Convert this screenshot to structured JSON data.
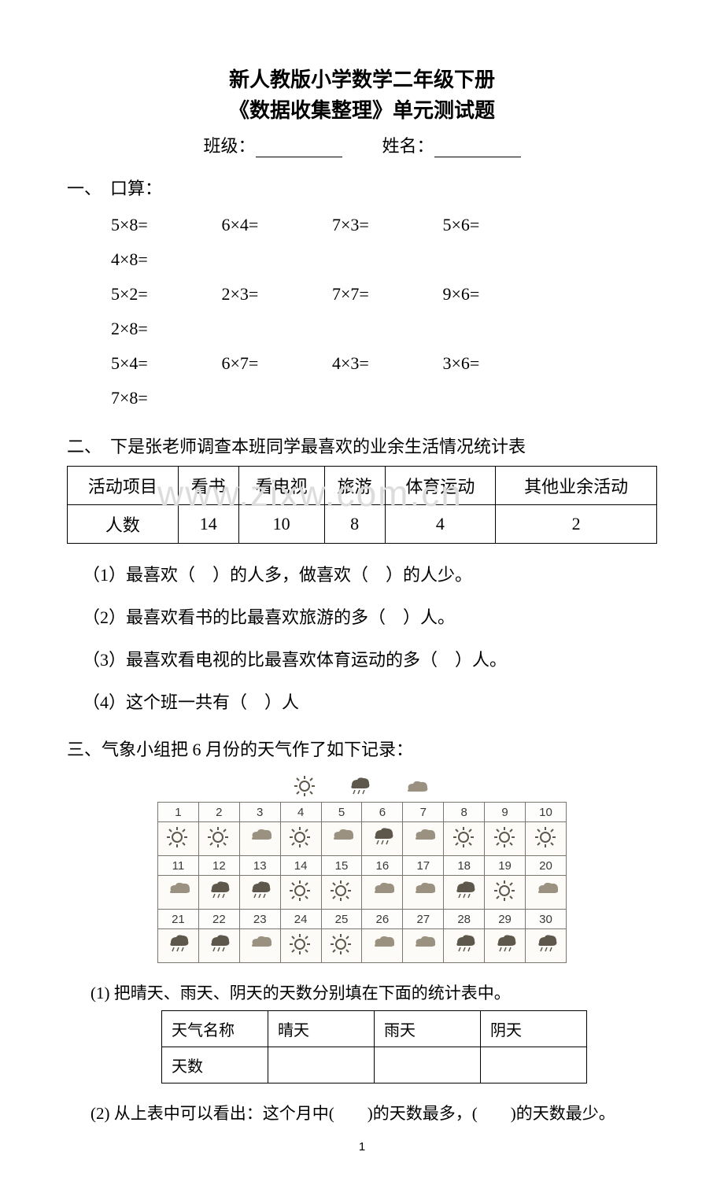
{
  "header": {
    "title_line1": "新人教版小学数学二年级下册",
    "title_line2": "《数据收集整理》单元测试题",
    "class_label": "班级：",
    "name_label": "姓名："
  },
  "section1": {
    "heading": "一、　口算：",
    "rows": [
      [
        "5×8=",
        "6×4=",
        "7×3=",
        "5×6=",
        "4×8="
      ],
      [
        "5×2=",
        "2×3=",
        "7×7=",
        "9×6=",
        "2×8="
      ],
      [
        "5×4=",
        "6×7=",
        "4×3=",
        "3×6=",
        "7×8="
      ]
    ]
  },
  "section2": {
    "heading": "二、　下是张老师调查本班同学最喜欢的业余生活情况统计表",
    "table": {
      "headers": [
        "活动项目",
        "看书",
        "看电视",
        "旅游",
        "体育运动",
        "其他业余活动"
      ],
      "row_label": "人数",
      "values": [
        "14",
        "10",
        "8",
        "4",
        "2"
      ]
    },
    "questions": [
      "（1）最喜欢（　）的人多，做喜欢（　）的人少。",
      "（2）最喜欢看书的比最喜欢旅游的多（　）人。",
      "（3）最喜欢看电视的比最喜欢体育运动的多（　）人。",
      "（4）这个班一共有（　）人"
    ]
  },
  "section3": {
    "heading": "三、气象小组把 6 月份的天气作了如下记录：",
    "legend": {
      "sun": "sun",
      "rain": "rain",
      "cloud": "cloud"
    },
    "calendar": {
      "days": [
        1,
        2,
        3,
        4,
        5,
        6,
        7,
        8,
        9,
        10,
        11,
        12,
        13,
        14,
        15,
        16,
        17,
        18,
        19,
        20,
        21,
        22,
        23,
        24,
        25,
        26,
        27,
        28,
        29,
        30
      ],
      "weather": [
        "sun",
        "sun",
        "cloud",
        "sun",
        "cloud",
        "rain",
        "cloud",
        "sun",
        "sun",
        "sun",
        "cloud",
        "rain",
        "rain",
        "sun",
        "sun",
        "cloud",
        "cloud",
        "rain",
        "sun",
        "cloud",
        "rain",
        "rain",
        "cloud",
        "sun",
        "sun",
        "cloud",
        "cloud",
        "rain",
        "rain",
        "rain"
      ]
    },
    "q1": "(1) 把晴天、雨天、阴天的天数分别填在下面的统计表中。",
    "answer_table": {
      "row1": [
        "天气名称",
        "晴天",
        "雨天",
        "阴天"
      ],
      "row2_label": "天数"
    },
    "q2": "(2) 从上表中可以看出：这个月中(　　)的天数最多，(　　)的天数最少。"
  },
  "watermark": "www.zixw.com.cn",
  "page_number": "1",
  "palette": {
    "ink": "#000000",
    "watermark": "#dcdcdc",
    "weather_border": "#7a766d",
    "icon_fill": "#5e584c"
  }
}
